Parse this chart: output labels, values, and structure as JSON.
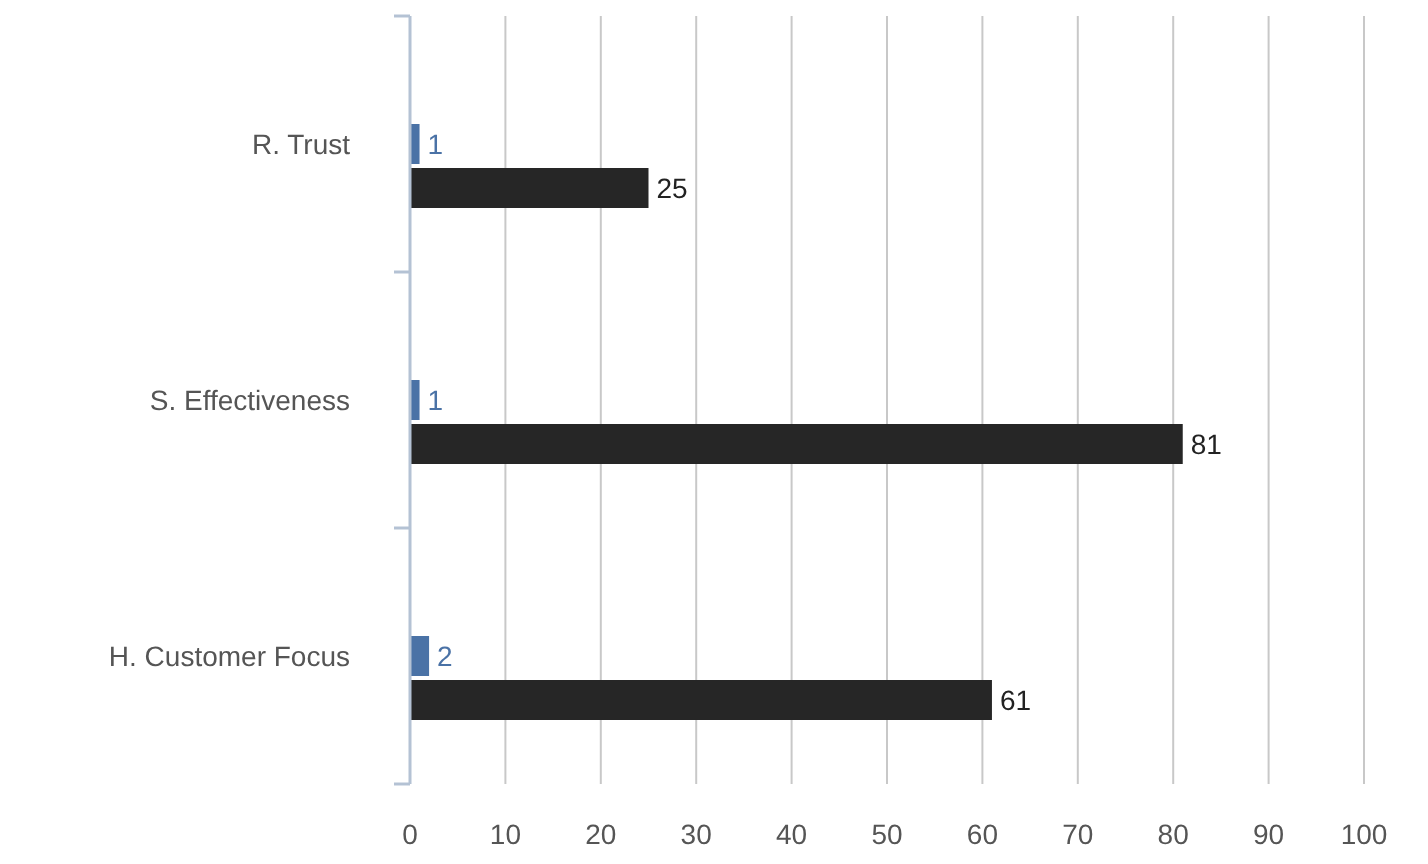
{
  "chart_data": {
    "type": "bar",
    "orientation": "horizontal",
    "categories": [
      "R. Trust",
      "S. Effectiveness",
      "H. Customer Focus"
    ],
    "series": [
      {
        "color": "#4a72a6",
        "values": [
          1,
          1,
          2
        ]
      },
      {
        "color": "#262626",
        "values": [
          25,
          81,
          61
        ]
      }
    ],
    "xlim": [
      0,
      100
    ],
    "xticks": [
      0,
      10,
      20,
      30,
      40,
      50,
      60,
      70,
      80,
      90,
      100
    ],
    "grid": "x",
    "data_labels": true
  }
}
